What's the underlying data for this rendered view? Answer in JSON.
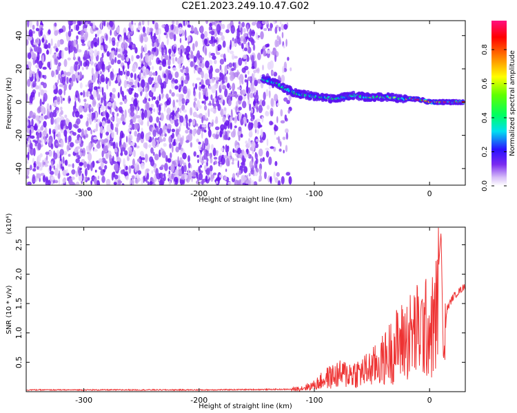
{
  "title": "C2E1.2023.249.10.47.G02",
  "chart_data": [
    {
      "type": "heatmap",
      "xlabel": "Height of straight line (km)",
      "ylabel": "Frequency (Hz)",
      "xlim": [
        -350,
        31
      ],
      "ylim": [
        -50,
        49
      ],
      "xticks": [
        -300,
        -200,
        -100,
        0
      ],
      "yticks": [
        -40,
        -20,
        0,
        20,
        40
      ],
      "colorbar": {
        "label": "Normalized spectral amplitude",
        "range": [
          0.0,
          0.97
        ],
        "ticks": [
          0.0,
          0.2,
          0.4,
          0.6,
          0.8
        ]
      },
      "signal_track": {
        "x": [
          -145,
          -135,
          -125,
          -115,
          -105,
          -95,
          -85,
          -75,
          -65,
          -55,
          -45,
          -35,
          -25,
          -15,
          -5,
          0,
          10,
          20,
          30
        ],
        "frequency": [
          14,
          12,
          8,
          5,
          4,
          3,
          2,
          3,
          4,
          3,
          3,
          3,
          2,
          2,
          1,
          0,
          0,
          0,
          0
        ]
      },
      "noise_region_x": [
        -350,
        -120
      ]
    },
    {
      "type": "line",
      "xlabel": "Height of straight line (km)",
      "ylabel": "SNR (10 * v/v)",
      "y_multiplier": "(x10⁴)",
      "xlim": [
        -350,
        31
      ],
      "ylim": [
        0,
        2.8
      ],
      "xticks": [
        -300,
        -200,
        -100,
        0
      ],
      "yticks": [
        0.5,
        1.0,
        1.5,
        2.0,
        2.5
      ],
      "color": "#ee3333",
      "series": [
        {
          "x": [
            -350,
            -300,
            -200,
            -120,
            -110,
            -100,
            -90,
            -80,
            -70,
            -60,
            -50,
            -40,
            -30,
            -20,
            -10,
            0,
            5,
            10,
            12,
            15,
            20,
            25,
            31
          ],
          "y": [
            0.03,
            0.03,
            0.03,
            0.04,
            0.07,
            0.12,
            0.25,
            0.32,
            0.34,
            0.36,
            0.45,
            0.6,
            0.85,
            1.0,
            1.15,
            1.2,
            1.25,
            2.75,
            0.5,
            1.4,
            1.6,
            1.7,
            1.8
          ]
        }
      ]
    }
  ]
}
